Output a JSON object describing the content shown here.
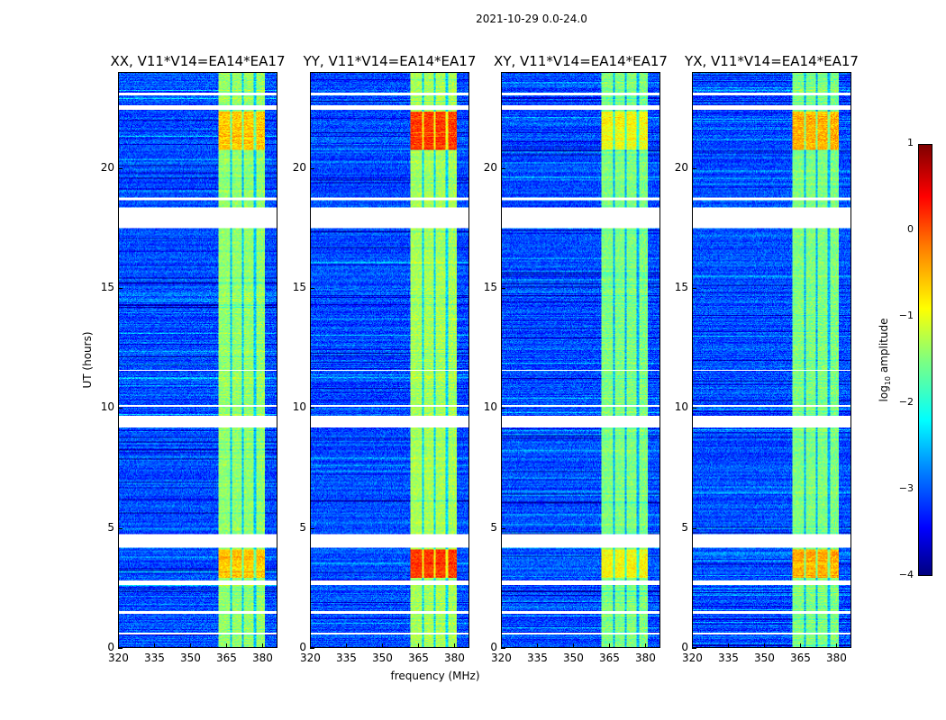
{
  "suptitle": "2021-10-29 0.0-24.0",
  "chart_data": {
    "type": "heatmap",
    "xlabel": "frequency (MHz)",
    "ylabel": "UT (hours)",
    "xlim": [
      320,
      386.4
    ],
    "ylim": [
      0,
      24
    ],
    "xticks": [
      "320",
      "335",
      "350",
      "365",
      "380"
    ],
    "xtick_values": [
      320,
      335,
      350,
      365,
      380
    ],
    "yticks": [
      "0",
      "5",
      "10",
      "15",
      "20"
    ],
    "ytick_values": [
      0,
      5,
      10,
      15,
      20
    ],
    "colorbar": {
      "label_main": "log",
      "label_sub": "10",
      "label_rest": " amplitude",
      "colormap": "jet",
      "range": [
        -4,
        1
      ],
      "ticks": [
        "1",
        "0",
        "−1",
        "−2",
        "−3",
        "−4"
      ],
      "tick_values": [
        1,
        0,
        -1,
        -2,
        -3,
        -4
      ]
    },
    "band_mhz": [
      362,
      381.5
    ],
    "band_subchannel_edges_mhz": [
      367,
      372,
      377
    ],
    "background_log_amp": -3.0,
    "flagged_hours": [
      [
        0.55,
        0.62
      ],
      [
        1.4,
        1.5
      ],
      [
        2.6,
        2.8
      ],
      [
        4.2,
        4.75
      ],
      [
        9.2,
        9.7
      ],
      [
        10.05,
        10.15
      ],
      [
        11.55,
        11.6
      ],
      [
        17.55,
        18.4
      ],
      [
        18.7,
        18.8
      ],
      [
        22.5,
        22.65
      ],
      [
        23.1,
        23.2
      ]
    ],
    "panels": [
      {
        "title": "XX, V11*V14=EA14*EA17",
        "band_log_amp": -1.4,
        "peak_log_amp": -0.6
      },
      {
        "title": "YY, V11*V14=EA14*EA17",
        "band_log_amp": -1.3,
        "peak_log_amp": 0.1
      },
      {
        "title": "XY, V11*V14=EA14*EA17",
        "band_log_amp": -1.5,
        "peak_log_amp": -0.9
      },
      {
        "title": "YX, V11*V14=EA14*EA17",
        "band_log_amp": -1.5,
        "peak_log_amp": -0.5
      }
    ],
    "peak_hours": [
      [
        2.9,
        4.1
      ],
      [
        20.8,
        22.4
      ]
    ]
  }
}
